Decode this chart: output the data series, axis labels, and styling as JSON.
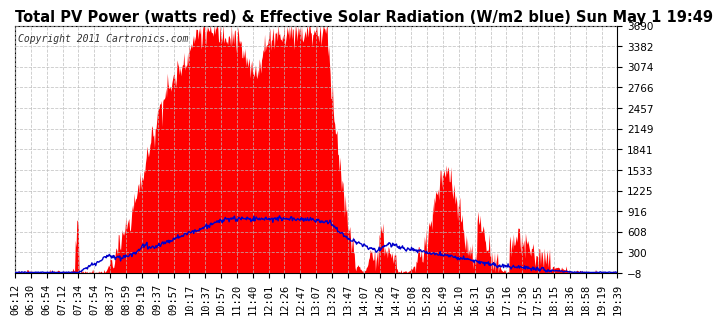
{
  "title": "Total PV Power (watts red) & Effective Solar Radiation (W/m2 blue) Sun May 1 19:49",
  "copyright": "Copyright 2011 Cartronics.com",
  "ylim": [
    -8.3,
    3690.2
  ],
  "yticks": [
    3690.2,
    3382.0,
    3073.8,
    2765.6,
    2457.4,
    2149.2,
    1841.0,
    1532.8,
    1224.6,
    916.4,
    608.2,
    300.0,
    -8.3
  ],
  "background_color": "#ffffff",
  "plot_bg_color": "#ffffff",
  "title_color": "#000000",
  "grid_color": "#bbbbbb",
  "red_color": "#ff0000",
  "blue_color": "#0000cc",
  "title_fontsize": 10.5,
  "copyright_fontsize": 7,
  "tick_fontsize": 7.5,
  "time_labels": [
    "06:12",
    "06:30",
    "06:54",
    "07:12",
    "07:34",
    "07:54",
    "08:37",
    "08:59",
    "09:19",
    "09:37",
    "09:57",
    "10:17",
    "10:37",
    "10:57",
    "11:20",
    "11:40",
    "12:01",
    "12:26",
    "12:47",
    "13:07",
    "13:28",
    "13:47",
    "14:07",
    "14:26",
    "14:47",
    "15:08",
    "15:28",
    "15:49",
    "16:10",
    "16:31",
    "16:50",
    "17:16",
    "17:36",
    "17:55",
    "18:15",
    "18:36",
    "18:58",
    "19:19",
    "19:39"
  ]
}
